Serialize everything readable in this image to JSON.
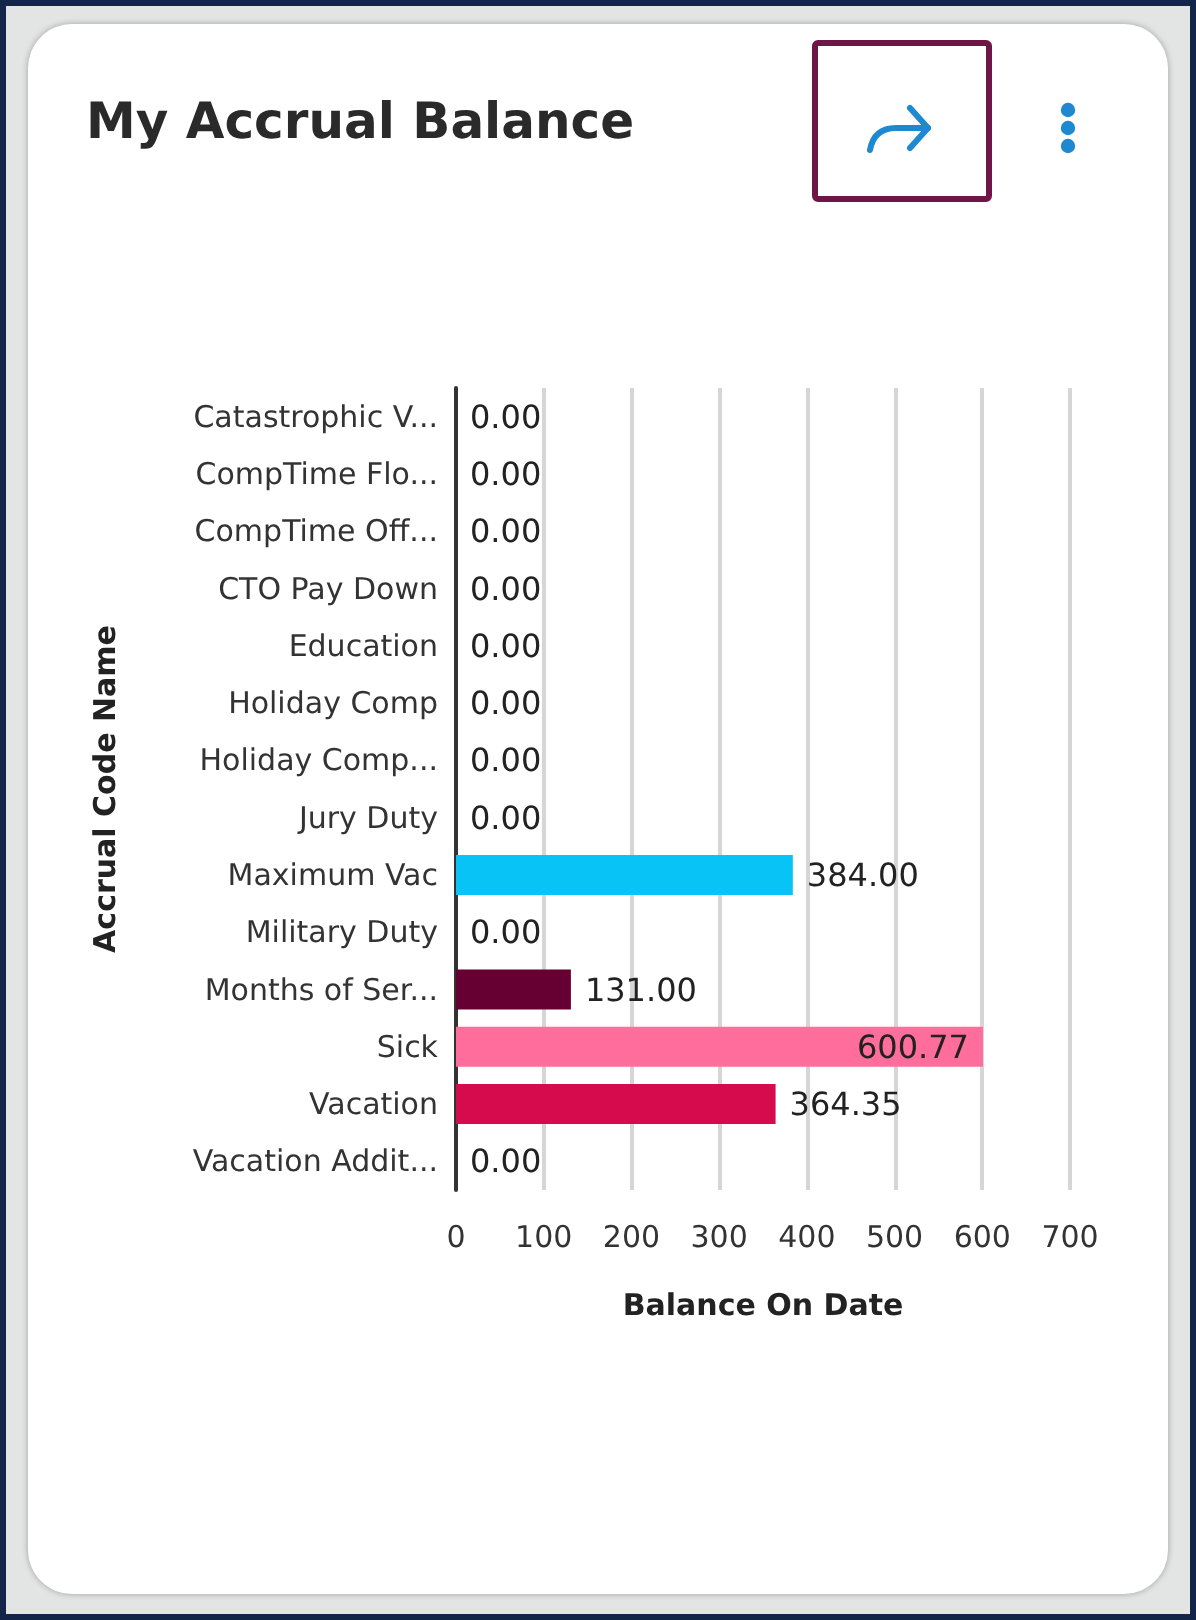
{
  "chart_data": {
    "type": "bar",
    "title": "My Accrual Balance",
    "orientation": "horizontal",
    "categories": [
      "Catastrophic V...",
      "CompTime Flo...",
      "CompTime Off...",
      "CTO Pay Down",
      "Education",
      "Holiday Comp",
      "Holiday Comp...",
      "Jury Duty",
      "Maximum Vac",
      "Military Duty",
      "Months of Ser...",
      "Sick",
      "Vacation",
      "Vacation Addit..."
    ],
    "values": [
      0,
      0,
      0,
      0,
      0,
      0,
      0,
      0,
      384,
      0,
      131,
      600.77,
      364.35,
      0
    ],
    "colors": [
      null,
      null,
      null,
      null,
      null,
      null,
      null,
      null,
      "#08c4f6",
      null,
      "#660033",
      "#ff6d9c",
      "#d50b4e",
      null
    ],
    "value_labels": [
      "0.00",
      "0.00",
      "0.00",
      "0.00",
      "0.00",
      "0.00",
      "0.00",
      "0.00",
      "384.00",
      "0.00",
      "131.00",
      "600.77",
      "364.35",
      "0.00"
    ],
    "xlabel": "Balance On Date",
    "ylabel": "Accrual Code Name",
    "xlim": [
      0,
      700
    ],
    "xticks": [
      0,
      100,
      200,
      300,
      400,
      500,
      600,
      700
    ],
    "grid": "x"
  }
}
